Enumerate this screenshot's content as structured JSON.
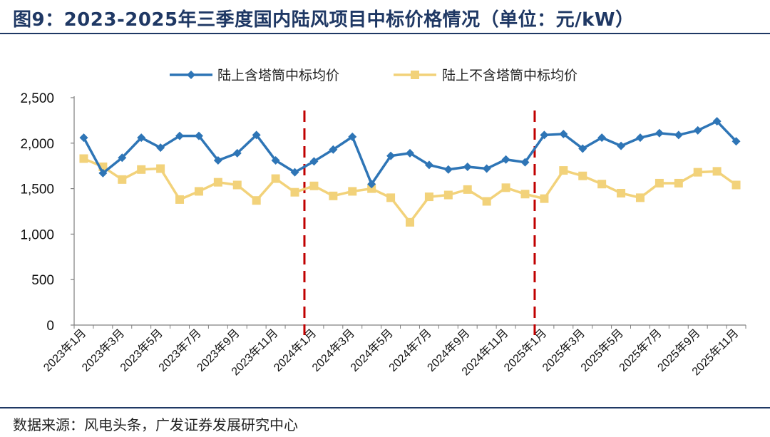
{
  "header": {
    "title": "图9：2023-2025年三季度国内陆风项目中标价格情况（单位：元/kW）"
  },
  "footer": {
    "source": "数据来源：风电头条，广发证券发展研究中心"
  },
  "chart_data": {
    "type": "line",
    "x": [
      "2023年1月",
      "2023年2月",
      "2023年3月",
      "2023年4月",
      "2023年5月",
      "2023年6月",
      "2023年7月",
      "2023年8月",
      "2023年9月",
      "2023年10月",
      "2023年11月",
      "2023年12月",
      "2024年1月",
      "2024年2月",
      "2024年3月",
      "2024年4月",
      "2024年5月",
      "2024年6月",
      "2024年7月",
      "2024年8月",
      "2024年9月",
      "2024年10月",
      "2024年11月",
      "2024年12月",
      "2025年1月",
      "2025年2月",
      "2025年3月",
      "2025年4月",
      "2025年5月",
      "2025年6月",
      "2025年7月",
      "2025年8月",
      "2025年9月",
      "2025年10月",
      "2025年11月"
    ],
    "xtick_labels": [
      "2023年1月",
      "2023年3月",
      "2023年5月",
      "2023年7月",
      "2023年9月",
      "2023年11月",
      "2024年1月",
      "2024年3月",
      "2024年5月",
      "2024年7月",
      "2024年9月",
      "2024年11月",
      "2025年1月",
      "2025年3月",
      "2025年5月",
      "2025年7月",
      "2025年9月",
      "2025年11月"
    ],
    "series": [
      {
        "name": "陆上含塔筒中标均价",
        "color": "#2e75b6",
        "marker": "diamond",
        "values": [
          2060,
          1670,
          1840,
          2060,
          1950,
          2080,
          2080,
          1810,
          1890,
          2090,
          1810,
          1680,
          1800,
          1930,
          2070,
          1550,
          1860,
          1890,
          1760,
          1710,
          1740,
          1720,
          1820,
          1790,
          2090,
          2100,
          1940,
          2060,
          1970,
          2060,
          2110,
          2090,
          2140,
          2240,
          2020
        ]
      },
      {
        "name": "陆上不含塔筒中标均价",
        "color": "#f2d27a",
        "marker": "square",
        "values": [
          1830,
          1740,
          1600,
          1710,
          1720,
          1380,
          1470,
          1570,
          1540,
          1370,
          1610,
          1460,
          1530,
          1420,
          1470,
          1500,
          1400,
          1130,
          1410,
          1430,
          1490,
          1360,
          1510,
          1440,
          1390,
          1700,
          1640,
          1550,
          1450,
          1400,
          1560,
          1560,
          1680,
          1690,
          1540
        ]
      }
    ],
    "ylim": [
      0,
      2500
    ],
    "yticks": [
      "0",
      "500",
      "1,000",
      "1,500",
      "2,000",
      "2,500"
    ],
    "reference_lines": [
      {
        "x_index": 11.5,
        "color": "#c00000",
        "style": "dashed"
      },
      {
        "x_index": 23.5,
        "color": "#c00000",
        "style": "dashed"
      }
    ],
    "legend_position": "top",
    "grid": false
  }
}
